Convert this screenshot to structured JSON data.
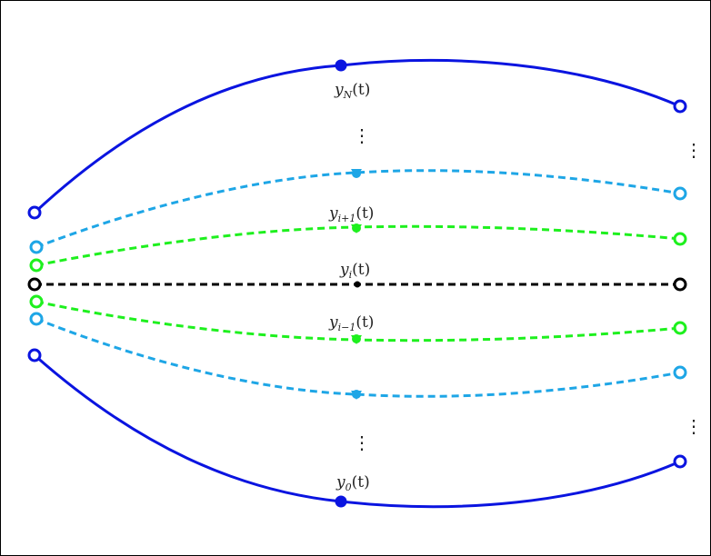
{
  "colors": {
    "outer": "#0a14e0",
    "cyan": "#1ea6e6",
    "green": "#1ef01e",
    "center": "#000000"
  },
  "labels": {
    "yN": {
      "base": "y",
      "sub": "N",
      "arg": "(t)"
    },
    "yip1": {
      "base": "y",
      "sub": "i+1",
      "arg": "(t)"
    },
    "yi": {
      "base": "y",
      "sub": "i",
      "arg": "(t)"
    },
    "yim1": {
      "base": "y",
      "sub": "i−1",
      "arg": "(t)"
    },
    "y0": {
      "base": "y",
      "sub": "0",
      "arg": "(t)"
    }
  },
  "ellipsis": "⋮"
}
